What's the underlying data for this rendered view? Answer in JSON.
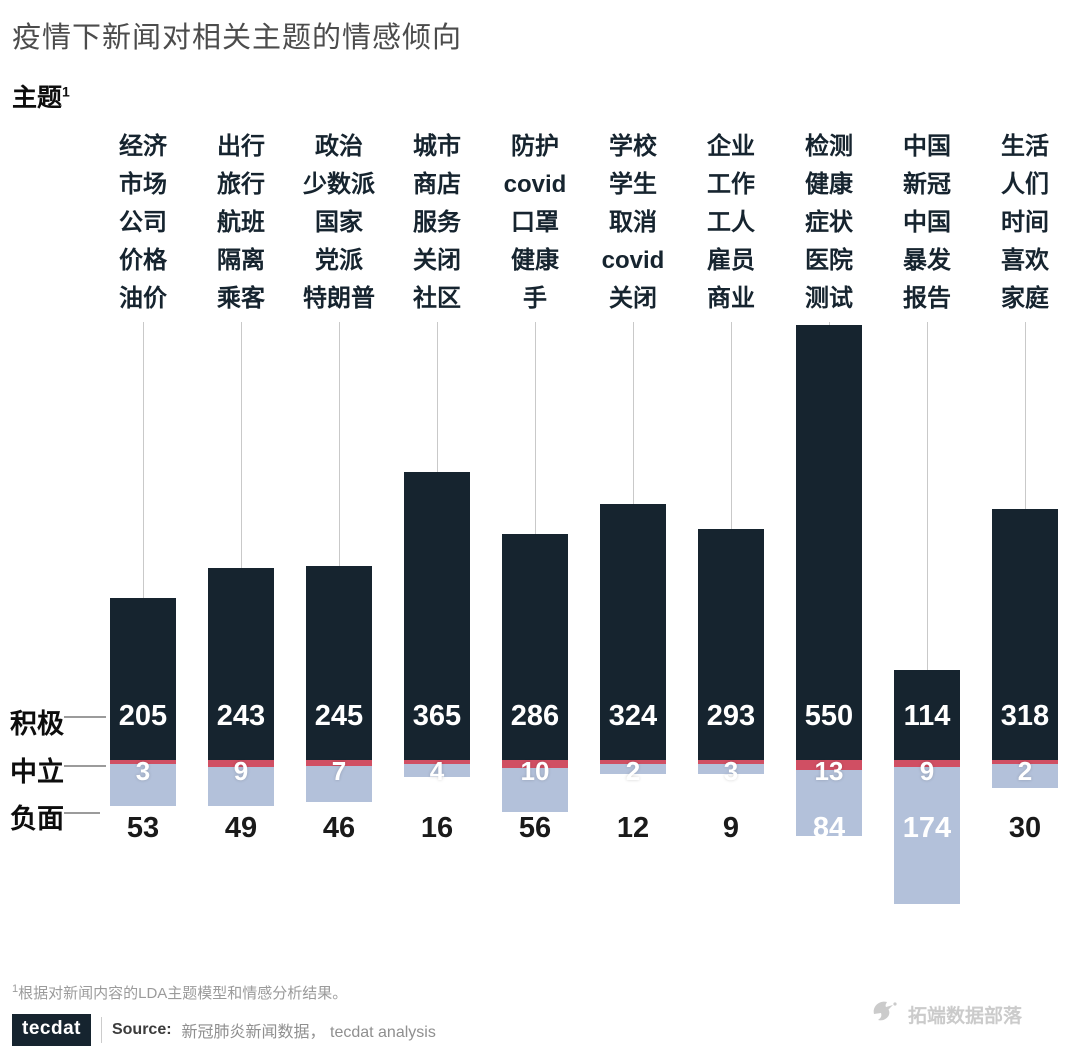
{
  "page": {
    "title": "疫情下新闻对相关主题的情感倾向",
    "subtitle": {
      "text": "主题",
      "sup": "1"
    },
    "footnote": {
      "sup": "1",
      "text": "根据对新闻内容的LDA主题模型和情感分析结果。"
    }
  },
  "chart_data": {
    "type": "bar",
    "variant": "diverging-stacked-columns",
    "title": "疫情下新闻对相关主题的情感倾向",
    "topic_header": "主题",
    "axes": false,
    "legend_position": "left-rows",
    "categories": [
      [
        "经济",
        "市场",
        "公司",
        "价格",
        "油价"
      ],
      [
        "出行",
        "旅行",
        "航班",
        "隔离",
        "乘客"
      ],
      [
        "政治",
        "少数派",
        "国家",
        "党派",
        "特朗普"
      ],
      [
        "城市",
        "商店",
        "服务",
        "关闭",
        "社区"
      ],
      [
        "防护",
        "covid",
        "口罩",
        "健康",
        "手"
      ],
      [
        "学校",
        "学生",
        "取消",
        "covid",
        "关闭"
      ],
      [
        "企业",
        "工作",
        "工人",
        "雇员",
        "商业"
      ],
      [
        "检测",
        "健康",
        "症状",
        "医院",
        "测试"
      ],
      [
        "中国",
        "新冠",
        "中国",
        "暴发",
        "报告"
      ],
      [
        "生活",
        "人们",
        "时间",
        "喜欢",
        "家庭"
      ]
    ],
    "series": [
      {
        "name": "积极",
        "color": "#16242f",
        "values": [
          205,
          243,
          245,
          365,
          286,
          324,
          293,
          550,
          114,
          318
        ]
      },
      {
        "name": "中立",
        "color": "#d04f63",
        "values": [
          3,
          9,
          7,
          4,
          10,
          2,
          3,
          13,
          9,
          2
        ]
      },
      {
        "name": "负面",
        "color": "#b3c1da",
        "values": [
          53,
          49,
          46,
          16,
          56,
          12,
          9,
          84,
          174,
          30
        ]
      }
    ]
  },
  "colors": {
    "positive": "#16242f",
    "neutral": "#d04f63",
    "negative": "#b3c1da",
    "negative_value_dark": "#1a1a1a",
    "connector": "#c9c9c9"
  },
  "source": {
    "logo": "tecdat",
    "label": "Source:",
    "text": "新冠肺炎新闻数据， tecdat analysis"
  },
  "watermark": {
    "text": "拓端数据部落"
  }
}
